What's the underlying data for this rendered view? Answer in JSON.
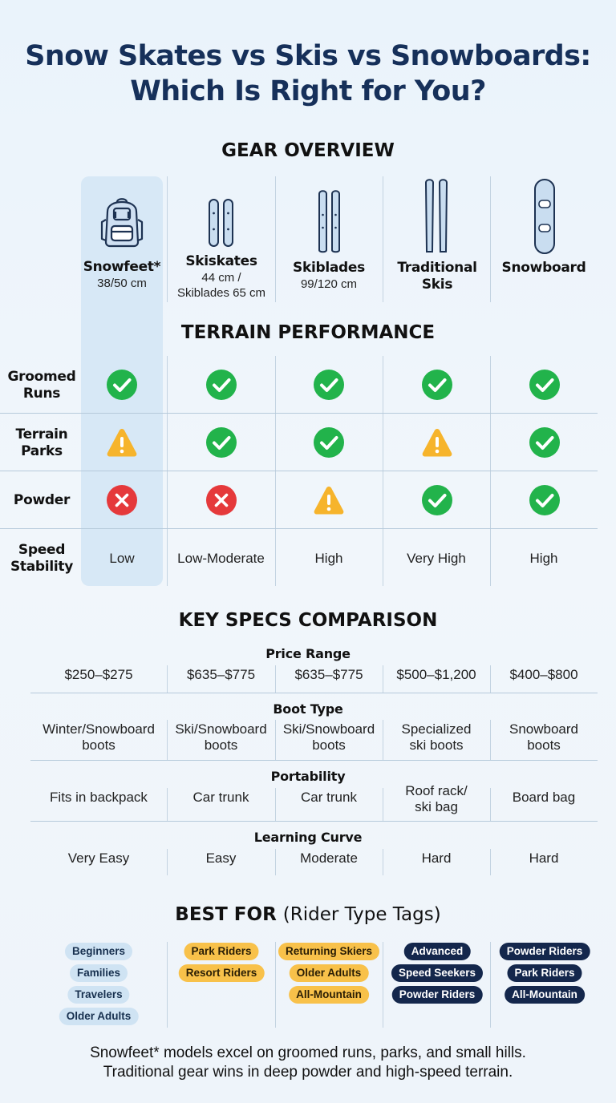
{
  "title_line1": "Snow Skates vs Skis vs Snowboards:",
  "title_line2": "Which Is Right for You?",
  "sections": {
    "gear_overview": "GEAR OVERVIEW",
    "terrain_performance": "TERRAIN PERFORMANCE",
    "key_specs": "KEY SPECS COMPARISON",
    "best_for": "BEST FOR",
    "best_for_sub": "(Rider Type Tags)"
  },
  "gear": [
    {
      "name": "Snowfeet*",
      "size": "38/50 cm",
      "icon": "backpack-icon"
    },
    {
      "name": "Skiskates",
      "size": "44 cm /\nSkiblades 65 cm",
      "icon": "skiskates-icon"
    },
    {
      "name": "Skiblades",
      "size": "99/120 cm",
      "icon": "skiblades-icon"
    },
    {
      "name": "Traditional Skis",
      "size": "",
      "icon": "traditional-skis-icon"
    },
    {
      "name": "Snowboard",
      "size": "",
      "icon": "snowboard-icon"
    }
  ],
  "terrain": {
    "rows": [
      {
        "label": "Groomed Runs",
        "values": [
          "check",
          "check",
          "check",
          "check",
          "check"
        ]
      },
      {
        "label": "Terrain Parks",
        "values": [
          "warning",
          "check",
          "check",
          "warning",
          "check"
        ]
      },
      {
        "label": "Powder",
        "values": [
          "cross",
          "cross",
          "warning",
          "check",
          "check"
        ]
      }
    ],
    "speed_label": "Speed Stability",
    "speed_values": [
      "Low",
      "Low-Moderate",
      "High",
      "Very High",
      "High"
    ]
  },
  "specs": [
    {
      "heading": "Price Range",
      "values": [
        "$250–$275",
        "$635–$775",
        "$635–$775",
        "$500–$1,200",
        "$400–$800"
      ]
    },
    {
      "heading": "Boot Type",
      "values": [
        "Winter/Snowboard\nboots",
        "Ski/Snowboard\nboots",
        "Ski/Snowboard\nboots",
        "Specialized\nski boots",
        "Snowboard\nboots"
      ]
    },
    {
      "heading": "Portability",
      "values": [
        "Fits in backpack",
        "Car trunk",
        "Car trunk",
        "Roof rack/\nski bag",
        "Board bag"
      ]
    },
    {
      "heading": "Learning Curve",
      "values": [
        "Very Easy",
        "Easy",
        "Moderate",
        "Hard",
        "Hard"
      ]
    }
  ],
  "tags": [
    {
      "style": "light",
      "items": [
        "Beginners",
        "Families",
        "Travelers",
        "Older Adults"
      ]
    },
    {
      "style": "yellow",
      "items": [
        "Park Riders",
        "Resort Riders"
      ]
    },
    {
      "style": "yellow",
      "items": [
        "Returning Skiers",
        "Older Adults",
        "All-Mountain"
      ]
    },
    {
      "style": "navy",
      "items": [
        "Advanced",
        "Speed Seekers",
        "Powder Riders"
      ]
    },
    {
      "style": "navy",
      "items": [
        "Powder Riders",
        "Park Riders",
        "All-Mountain"
      ]
    }
  ],
  "footer_line1": "Snowfeet* models excel on groomed runs, parks, and small hills.",
  "footer_line2": "Traditional gear wins in deep powder and high-speed terrain.",
  "colors": {
    "check": "#22b34b",
    "warning": "#f6b42c",
    "cross": "#e5393b",
    "title": "#16305a",
    "highlight": "#d7e8f6"
  }
}
